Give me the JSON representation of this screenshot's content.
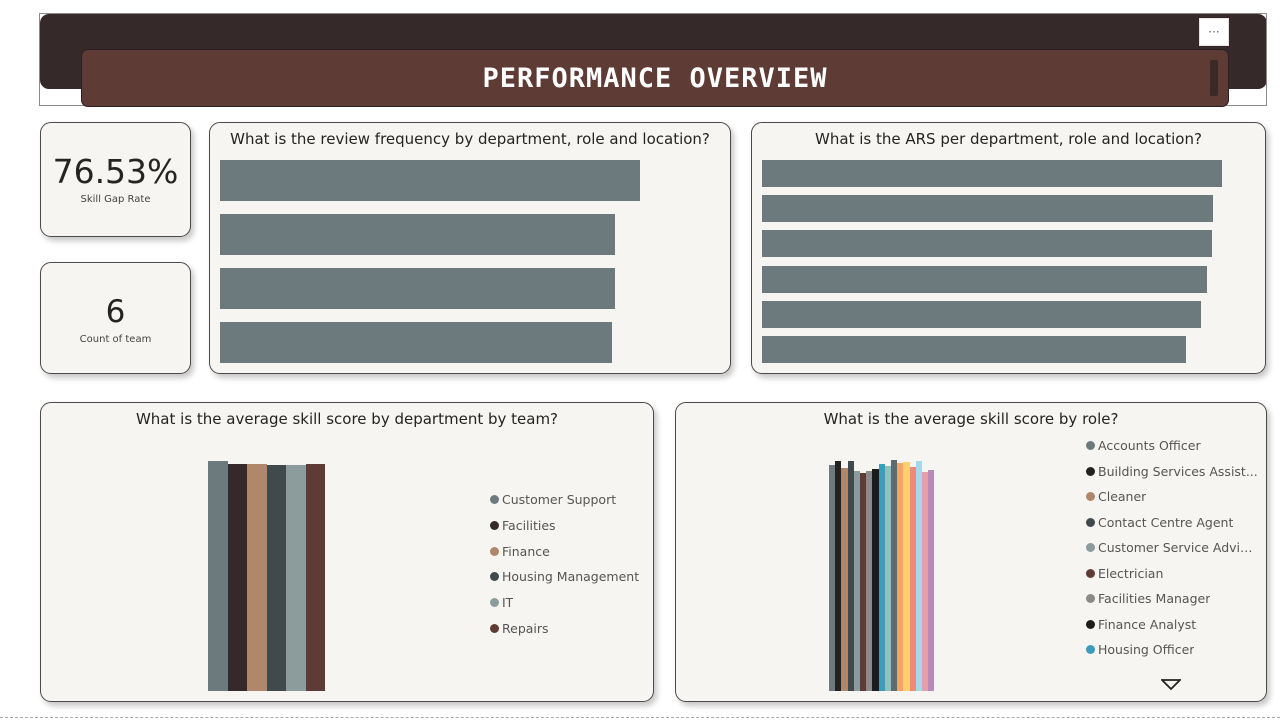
{
  "header": {
    "title": "PERFORMANCE OVERVIEW",
    "more_label": "···"
  },
  "kpis": {
    "skill_gap": {
      "value": "76.53%",
      "label": "Skill Gap Rate"
    },
    "team_count": {
      "value": "6",
      "label": "Count of team"
    }
  },
  "review_chart": {
    "title": "What is the review frequency by department, role and location?",
    "chart_data": {
      "type": "bar",
      "orientation": "horizontal",
      "values": [
        100,
        94,
        94,
        93.3
      ],
      "xlim": [
        0,
        100
      ]
    }
  },
  "ars_chart": {
    "title": "What is the ARS per department, role and location?",
    "chart_data": {
      "type": "bar",
      "orientation": "horizontal",
      "values": [
        100,
        98,
        97.9,
        96.7,
        95.4,
        92.2
      ],
      "xlim": [
        0,
        100
      ]
    }
  },
  "team_chart": {
    "title": "What is the average skill score by department by team?",
    "chart_data": {
      "type": "bar",
      "series": [
        {
          "name": "Customer Support",
          "value": 100,
          "color": "#6c7a7e"
        },
        {
          "name": "Facilities",
          "value": 98.7,
          "color": "#352a29"
        },
        {
          "name": "Finance",
          "value": 98.7,
          "color": "#b0876b"
        },
        {
          "name": "Housing Management",
          "value": 98.3,
          "color": "#404a4c"
        },
        {
          "name": "IT",
          "value": 98.3,
          "color": "#8c9b9c"
        },
        {
          "name": "Repairs",
          "value": 98.7,
          "color": "#5e3b34"
        }
      ],
      "ylim": [
        0,
        100
      ]
    }
  },
  "role_chart": {
    "title": "What is the average skill score by role?",
    "chart_data": {
      "type": "bar",
      "series": [
        {
          "name": "Accounts Officer",
          "value": 98.3,
          "color": "#6c7a7e"
        },
        {
          "name": "Building Services Assist...",
          "value": 100,
          "color": "#222222"
        },
        {
          "name": "Cleaner",
          "value": 97.0,
          "color": "#b0876b"
        },
        {
          "name": "Contact Centre Agent",
          "value": 100,
          "color": "#404a4c"
        },
        {
          "name": "Customer Service Advis...",
          "value": 95.7,
          "color": "#8c9b9c"
        },
        {
          "name": "Electrician",
          "value": 94.8,
          "color": "#5e3b34"
        },
        {
          "name": "Facilities Manager",
          "value": 95.7,
          "color": "#8a8a8a"
        },
        {
          "name": "Finance Analyst",
          "value": 96.5,
          "color": "#1c1c1c"
        },
        {
          "name": "Housing Officer",
          "value": 98.7,
          "color": "#3b9dbb"
        },
        {
          "name": "",
          "value": 97.8,
          "color": "#8fc1c1"
        },
        {
          "name": "",
          "value": 100.4,
          "color": "#5e6b70"
        },
        {
          "name": "",
          "value": 99.1,
          "color": "#f3a36b"
        },
        {
          "name": "",
          "value": 99.6,
          "color": "#ffcf70"
        },
        {
          "name": "",
          "value": 97.4,
          "color": "#f08a76"
        },
        {
          "name": "",
          "value": 100,
          "color": "#a5d8e8"
        },
        {
          "name": "",
          "value": 95.2,
          "color": "#e4a0a9"
        },
        {
          "name": "",
          "value": 96.1,
          "color": "#b98ab8"
        }
      ],
      "visible_legend_count": 9,
      "ylim": [
        0,
        100
      ]
    }
  }
}
